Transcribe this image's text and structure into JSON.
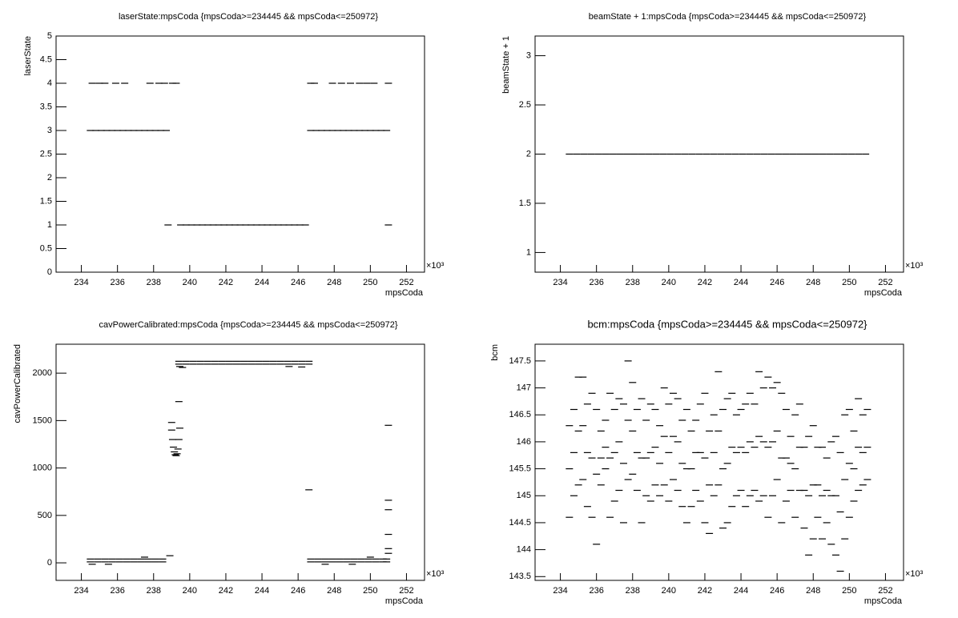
{
  "chart_data": [
    {
      "type": "scatter",
      "title": "laserState:mpsCoda {mpsCoda>=234445 && mpsCoda<=250972}",
      "x_label": "mpsCoda",
      "y_label": "laserState",
      "x_multiplier": "×10³",
      "color": "#000000",
      "xlim": [
        232.6,
        253.0
      ],
      "xticks": [
        234,
        236,
        238,
        240,
        242,
        244,
        246,
        248,
        250,
        252
      ],
      "ylim": [
        0,
        5
      ],
      "yticks": [
        0,
        0.5,
        1,
        1.5,
        2,
        2.5,
        3,
        3.5,
        4,
        4.5,
        5
      ],
      "x": [
        234.5,
        234.8,
        235.1,
        235.4,
        235.7,
        236.0,
        236.3,
        236.6,
        236.9,
        237.2,
        237.5,
        237.8,
        238.1,
        238.4,
        238.7,
        234.6,
        235.0,
        235.3,
        235.9,
        236.4,
        237.8,
        238.3,
        238.6,
        239.05,
        239.25,
        239.5,
        239.8,
        240.1,
        240.4,
        240.7,
        241.0,
        241.3,
        241.6,
        241.9,
        242.2,
        242.5,
        242.8,
        243.1,
        243.4,
        243.7,
        244.0,
        244.3,
        244.6,
        244.9,
        245.2,
        245.5,
        245.8,
        246.1,
        246.4,
        238.8,
        251.0,
        246.7,
        247.0,
        247.3,
        247.6,
        247.9,
        248.2,
        248.5,
        248.8,
        249.1,
        249.4,
        249.7,
        250.0,
        250.3,
        250.6,
        250.9,
        246.7,
        246.9,
        247.9,
        248.4,
        248.9,
        249.4,
        249.8,
        250.2,
        251.0
      ],
      "values": [
        3,
        3,
        3,
        3,
        3,
        3,
        3,
        3,
        3,
        3,
        3,
        3,
        3,
        3,
        3,
        4,
        4,
        4,
        4,
        4,
        4,
        4,
        4,
        4,
        4,
        1,
        1,
        1,
        1,
        1,
        1,
        1,
        1,
        1,
        1,
        1,
        1,
        1,
        1,
        1,
        1,
        1,
        1,
        1,
        1,
        1,
        1,
        1,
        1,
        1,
        1,
        3,
        3,
        3,
        3,
        3,
        3,
        3,
        3,
        3,
        3,
        3,
        3,
        3,
        3,
        3,
        4,
        4,
        4,
        4,
        4,
        4,
        4,
        4,
        4
      ]
    },
    {
      "type": "scatter",
      "title": "beamState + 1:mpsCoda {mpsCoda>=234445 && mpsCoda<=250972}",
      "x_label": "mpsCoda",
      "y_label": "beamState + 1",
      "x_multiplier": "×10³",
      "color": "#000000",
      "xlim": [
        232.6,
        253.0
      ],
      "xticks": [
        234,
        236,
        238,
        240,
        242,
        244,
        246,
        248,
        250,
        252
      ],
      "ylim": [
        0.8,
        3.2
      ],
      "yticks": [
        1,
        1.5,
        2,
        2.5,
        3
      ],
      "x": [
        234.5,
        234.9,
        235.3,
        235.7,
        236.1,
        236.5,
        236.9,
        237.3,
        237.7,
        238.1,
        238.5,
        238.9,
        239.3,
        239.7,
        240.1,
        240.5,
        240.9,
        241.3,
        241.7,
        242.1,
        242.5,
        242.9,
        243.3,
        243.7,
        244.1,
        244.5,
        244.9,
        245.3,
        245.7,
        246.1,
        246.5,
        246.9,
        247.3,
        247.7,
        248.1,
        248.5,
        248.9,
        249.3,
        249.7,
        250.1,
        250.5,
        250.9
      ],
      "values": [
        2,
        2,
        2,
        2,
        2,
        2,
        2,
        2,
        2,
        2,
        2,
        2,
        2,
        2,
        2,
        2,
        2,
        2,
        2,
        2,
        2,
        2,
        2,
        2,
        2,
        2,
        2,
        2,
        2,
        2,
        2,
        2,
        2,
        2,
        2,
        2,
        2,
        2,
        2,
        2,
        2,
        2
      ]
    },
    {
      "type": "scatter",
      "title": "cavPowerCalibrated:mpsCoda {mpsCoda>=234445 && mpsCoda<=250972}",
      "x_label": "mpsCoda",
      "y_label": "cavPowerCalibrated",
      "x_multiplier": "×10³",
      "color": "#000000",
      "xlim": [
        232.6,
        253.0
      ],
      "xticks": [
        234,
        236,
        238,
        240,
        242,
        244,
        246,
        248,
        250,
        252
      ],
      "ylim": [
        -185,
        2305
      ],
      "yticks": [
        0,
        500,
        1000,
        1500,
        2000
      ],
      "x": [
        234.5,
        234.9,
        235.3,
        235.7,
        236.1,
        236.5,
        236.9,
        237.3,
        237.7,
        238.1,
        238.5,
        234.5,
        234.9,
        235.3,
        235.7,
        236.1,
        236.5,
        236.9,
        237.3,
        237.7,
        238.1,
        238.5,
        239.4,
        239.8,
        240.2,
        240.6,
        241.0,
        241.4,
        241.8,
        242.2,
        242.6,
        243.0,
        243.4,
        243.8,
        244.2,
        244.6,
        245.0,
        245.4,
        245.8,
        246.2,
        246.6,
        239.4,
        239.8,
        240.2,
        240.6,
        241.0,
        241.4,
        241.8,
        242.2,
        242.6,
        243.0,
        243.4,
        243.8,
        244.2,
        244.6,
        245.0,
        245.4,
        245.8,
        246.2,
        246.6,
        246.7,
        247.1,
        247.5,
        247.9,
        248.3,
        248.7,
        249.1,
        249.5,
        249.9,
        250.3,
        250.7,
        250.9,
        246.7,
        247.1,
        247.5,
        247.9,
        248.3,
        248.7,
        249.1,
        249.5,
        249.9,
        250.3,
        250.7,
        250.9,
        239.0,
        239.0,
        239.05,
        239.1,
        239.15,
        239.2,
        239.25,
        239.3,
        239.35,
        239.4,
        239.45,
        239.4,
        239.45,
        239.6,
        245.5,
        246.2,
        246.6,
        251.0,
        251.0,
        251.0,
        251.0,
        251.0,
        251.0,
        234.6,
        235.5,
        237.5,
        247.5,
        249.0,
        250.0,
        238.9
      ],
      "values": [
        40,
        40,
        40,
        40,
        40,
        40,
        40,
        40,
        40,
        40,
        40,
        10,
        10,
        10,
        10,
        10,
        10,
        10,
        10,
        10,
        10,
        10,
        2125,
        2125,
        2125,
        2125,
        2125,
        2125,
        2125,
        2125,
        2125,
        2125,
        2125,
        2125,
        2125,
        2125,
        2125,
        2125,
        2125,
        2125,
        2125,
        2095,
        2095,
        2095,
        2095,
        2095,
        2095,
        2095,
        2095,
        2095,
        2095,
        2095,
        2095,
        2095,
        2095,
        2095,
        2095,
        2095,
        2095,
        2095,
        40,
        40,
        40,
        40,
        40,
        40,
        40,
        40,
        40,
        40,
        40,
        40,
        10,
        10,
        10,
        10,
        10,
        10,
        10,
        10,
        10,
        10,
        10,
        10,
        1480,
        1400,
        1300,
        1220,
        1170,
        1140,
        1130,
        1150,
        1200,
        1300,
        1420,
        1700,
        2070,
        2060,
        2070,
        2065,
        770,
        1450,
        660,
        560,
        300,
        150,
        100,
        -15,
        -15,
        60,
        -15,
        -15,
        60,
        75
      ]
    },
    {
      "type": "scatter",
      "title": "bcm:mpsCoda {mpsCoda>=234445 && mpsCoda<=250972}",
      "x_label": "mpsCoda",
      "y_label": "bcm",
      "x_multiplier": "×10³",
      "color": "#000000",
      "xlim": [
        232.6,
        253.0
      ],
      "xticks": [
        234,
        236,
        238,
        240,
        242,
        244,
        246,
        248,
        250,
        252
      ],
      "ylim": [
        143.43,
        147.81
      ],
      "yticks": [
        143.5,
        144,
        144.5,
        145,
        145.5,
        146,
        146.5,
        147,
        147.5
      ],
      "x": [
        234.5,
        234.75,
        235.0,
        235.25,
        235.5,
        235.75,
        236.0,
        236.25,
        236.5,
        236.75,
        237.0,
        237.25,
        237.5,
        237.75,
        238.0,
        238.25,
        238.5,
        238.75,
        239.0,
        239.25,
        239.5,
        239.75,
        240.0,
        240.25,
        240.5,
        240.75,
        241.0,
        241.25,
        241.5,
        241.75,
        242.0,
        242.25,
        242.5,
        242.75,
        243.0,
        243.25,
        243.5,
        243.75,
        244.0,
        244.25,
        244.5,
        244.75,
        245.0,
        245.25,
        245.5,
        245.75,
        246.0,
        246.25,
        246.5,
        246.75,
        247.0,
        247.25,
        247.5,
        247.75,
        248.0,
        248.25,
        248.5,
        248.75,
        249.0,
        249.25,
        249.5,
        249.75,
        250.0,
        250.25,
        250.5,
        250.75,
        251.0,
        234.5,
        234.75,
        235.0,
        235.25,
        235.5,
        235.75,
        236.0,
        236.25,
        236.5,
        236.75,
        237.0,
        237.25,
        237.5,
        237.75,
        238.0,
        238.25,
        238.5,
        238.75,
        239.0,
        239.25,
        239.5,
        239.75,
        240.0,
        240.25,
        240.5,
        240.75,
        241.0,
        241.25,
        241.5,
        241.75,
        242.0,
        242.25,
        242.5,
        242.75,
        243.0,
        243.25,
        243.5,
        243.75,
        244.0,
        244.25,
        244.5,
        244.75,
        245.0,
        245.25,
        245.5,
        245.75,
        246.0,
        246.25,
        246.5,
        246.75,
        247.0,
        247.25,
        247.5,
        247.75,
        248.0,
        248.25,
        248.5,
        248.75,
        249.0,
        249.25,
        249.5,
        249.75,
        250.0,
        250.25,
        250.5,
        250.75,
        251.0,
        234.5,
        234.75,
        235.0,
        235.25,
        235.5,
        235.75,
        236.0,
        236.25,
        236.5,
        236.75,
        237.0,
        237.25,
        237.5,
        237.75,
        238.0,
        238.25,
        238.5,
        238.75,
        239.0,
        239.25,
        239.5,
        239.75,
        240.0,
        240.25,
        240.5,
        240.75,
        241.0,
        241.25,
        241.5,
        241.75,
        242.0,
        242.25,
        242.5,
        242.75,
        243.0,
        243.25,
        243.5,
        243.75,
        244.0,
        244.25,
        244.5,
        244.75,
        245.0,
        245.25,
        245.5,
        245.75,
        246.0,
        246.25,
        246.5,
        246.75,
        247.0,
        247.25,
        247.5,
        247.75,
        248.0,
        248.25,
        248.5,
        248.75,
        249.0,
        249.25,
        249.5,
        249.75,
        250.0,
        250.25,
        250.5,
        250.75,
        251.0
      ],
      "values": [
        144.6,
        145.0,
        145.2,
        145.3,
        144.8,
        144.6,
        144.1,
        145.2,
        145.5,
        144.6,
        144.9,
        145.1,
        144.5,
        145.3,
        145.4,
        145.1,
        144.5,
        145.0,
        144.9,
        145.2,
        145.0,
        145.2,
        144.9,
        145.3,
        145.1,
        144.8,
        144.5,
        144.8,
        145.1,
        144.9,
        144.5,
        144.3,
        145.0,
        145.2,
        144.4,
        144.5,
        144.8,
        145.0,
        145.1,
        144.8,
        145.0,
        145.1,
        144.9,
        145.0,
        144.6,
        145.0,
        145.3,
        144.5,
        144.9,
        145.1,
        144.6,
        145.1,
        144.4,
        143.9,
        144.2,
        144.6,
        144.2,
        144.5,
        144.1,
        143.9,
        143.6,
        144.2,
        144.6,
        144.9,
        145.1,
        145.2,
        145.3,
        145.5,
        145.8,
        146.2,
        146.3,
        145.8,
        145.7,
        145.4,
        145.7,
        145.9,
        145.7,
        145.8,
        146.0,
        145.6,
        146.4,
        146.2,
        145.8,
        145.7,
        145.7,
        145.8,
        145.9,
        145.6,
        146.1,
        145.8,
        146.1,
        146.0,
        145.6,
        145.5,
        145.5,
        145.8,
        145.8,
        145.7,
        145.2,
        145.8,
        146.2,
        145.5,
        145.6,
        145.9,
        145.8,
        145.9,
        145.8,
        146.0,
        145.9,
        146.1,
        146.0,
        145.9,
        146.0,
        146.2,
        145.7,
        145.7,
        145.6,
        145.5,
        145.9,
        145.1,
        145.0,
        145.2,
        145.2,
        145.0,
        145.1,
        145.0,
        145.0,
        144.7,
        145.3,
        145.6,
        145.5,
        145.9,
        145.8,
        145.9,
        146.3,
        146.6,
        147.2,
        147.2,
        146.7,
        146.9,
        146.6,
        146.2,
        146.4,
        146.9,
        146.6,
        146.8,
        146.7,
        147.5,
        147.1,
        146.6,
        146.8,
        146.4,
        146.7,
        146.6,
        146.3,
        147.0,
        146.7,
        146.9,
        146.8,
        146.4,
        146.6,
        146.2,
        146.4,
        146.7,
        146.9,
        146.2,
        146.5,
        147.3,
        146.6,
        146.8,
        146.9,
        146.5,
        146.6,
        146.7,
        146.9,
        146.7,
        147.3,
        147.0,
        147.2,
        147.0,
        147.1,
        146.9,
        146.6,
        146.1,
        146.5,
        146.7,
        145.9,
        146.1,
        146.3,
        145.9,
        145.9,
        145.7,
        146.0,
        146.1,
        145.8,
        146.5,
        146.6,
        146.2,
        146.8,
        146.5,
        146.6
      ]
    }
  ]
}
